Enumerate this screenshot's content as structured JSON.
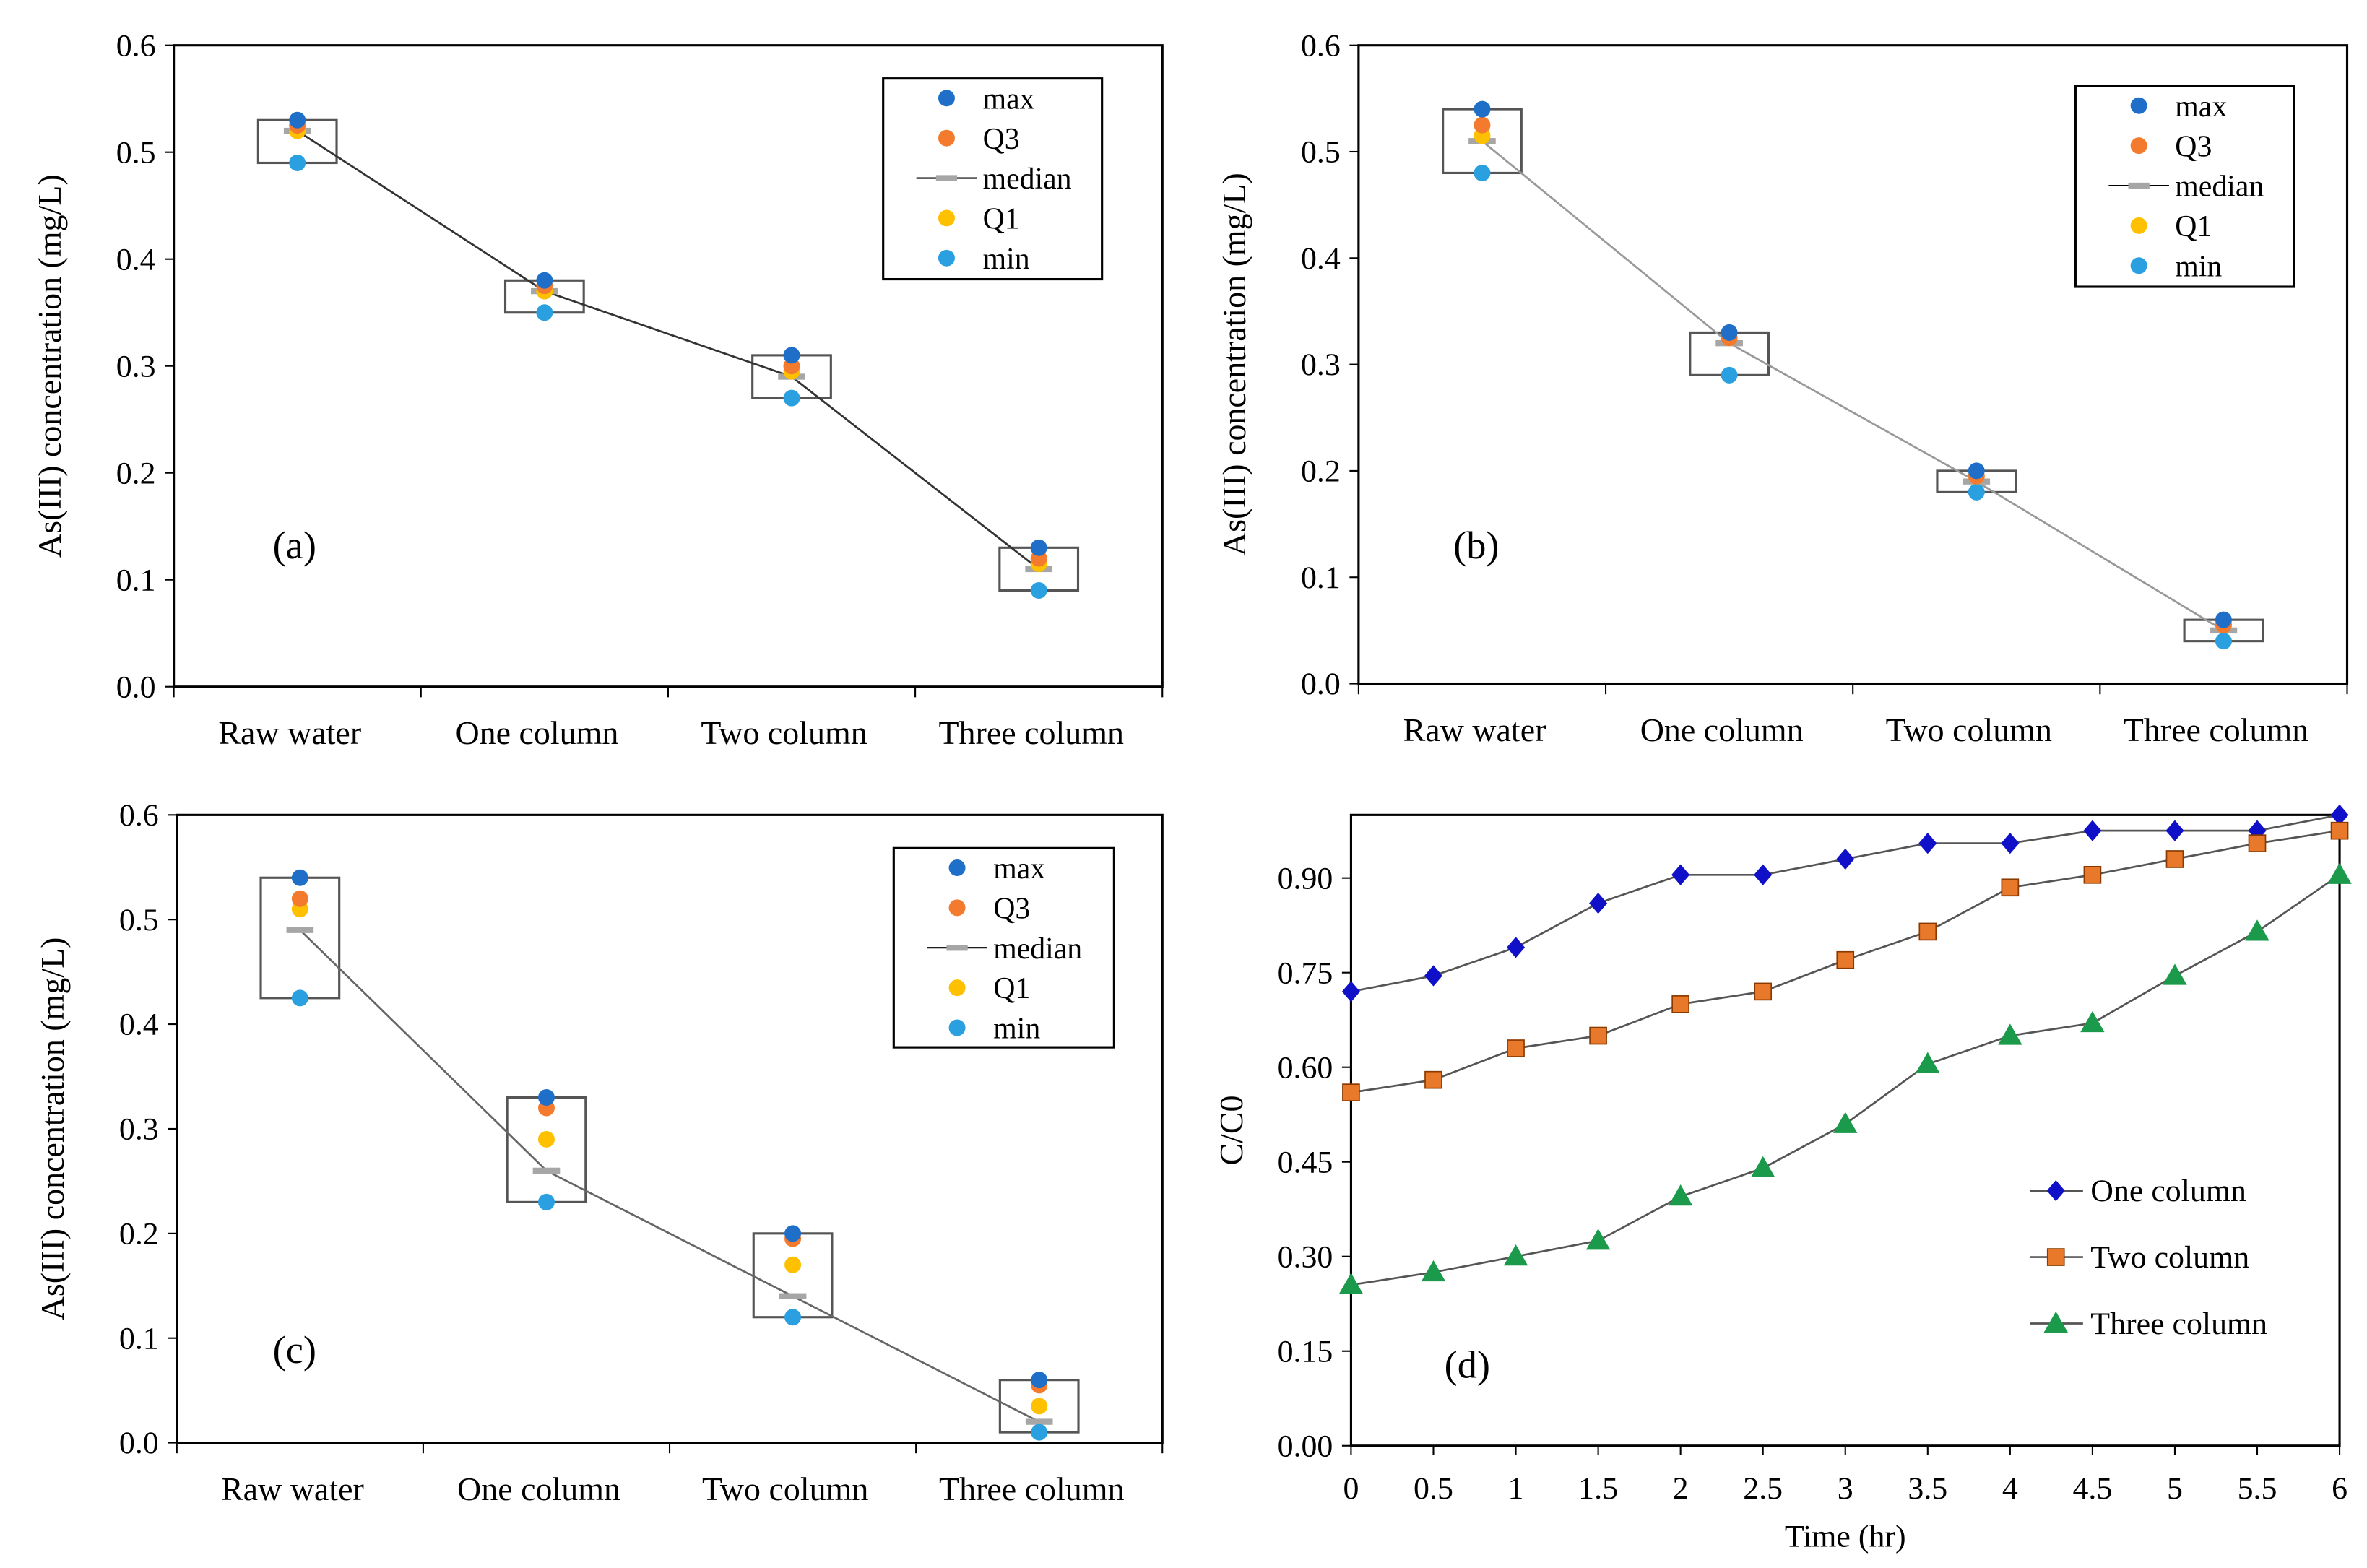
{
  "colors": {
    "max": "#1f6fc9",
    "Q3": "#f47b2e",
    "median": "#a6a6a6",
    "Q1": "#ffc000",
    "min": "#2aa0e0",
    "one": "#1010c8",
    "two": "#e8782a",
    "three": "#1a9a4a"
  },
  "chart_data": [
    {
      "type": "box",
      "panel_label": "(a)",
      "ylabel": "As(III) concentration (mg/L)",
      "ylim": [
        0,
        0.6
      ],
      "yticks": [
        "0.0",
        "0.1",
        "0.2",
        "0.3",
        "0.4",
        "0.5",
        "0.6"
      ],
      "categories": [
        "Raw water",
        "One column",
        "Two column",
        "Three column"
      ],
      "legend": [
        "max",
        "Q3",
        "median",
        "Q1",
        "min"
      ],
      "series": {
        "max": [
          0.53,
          0.38,
          0.31,
          0.13
        ],
        "Q3": [
          0.525,
          0.375,
          0.3,
          0.12
        ],
        "median": [
          0.52,
          0.37,
          0.29,
          0.11
        ],
        "Q1": [
          0.52,
          0.37,
          0.295,
          0.115
        ],
        "min": [
          0.49,
          0.35,
          0.27,
          0.09
        ]
      }
    },
    {
      "type": "box",
      "panel_label": "(b)",
      "ylabel": "As(III) concentration (mg/L)",
      "ylim": [
        0,
        0.6
      ],
      "yticks": [
        "0.0",
        "0.1",
        "0.2",
        "0.3",
        "0.4",
        "0.5",
        "0.6"
      ],
      "categories": [
        "Raw water",
        "One column",
        "Two column",
        "Three column"
      ],
      "legend": [
        "max",
        "Q3",
        "median",
        "Q1",
        "min"
      ],
      "series": {
        "max": [
          0.54,
          0.33,
          0.2,
          0.06
        ],
        "Q3": [
          0.525,
          0.325,
          0.195,
          0.055
        ],
        "median": [
          0.51,
          0.32,
          0.19,
          0.05
        ],
        "Q1": [
          0.515,
          0.325,
          0.195,
          0.055
        ],
        "min": [
          0.48,
          0.29,
          0.18,
          0.04
        ]
      }
    },
    {
      "type": "box",
      "panel_label": "(c)",
      "ylabel": "As(III) concentration (mg/L)",
      "ylim": [
        0,
        0.6
      ],
      "yticks": [
        "0.0",
        "0.1",
        "0.2",
        "0.3",
        "0.4",
        "0.5",
        "0.6"
      ],
      "categories": [
        "Raw water",
        "One column",
        "Two column",
        "Three column"
      ],
      "legend": [
        "max",
        "Q3",
        "median",
        "Q1",
        "min"
      ],
      "series": {
        "max": [
          0.54,
          0.33,
          0.2,
          0.06
        ],
        "Q3": [
          0.52,
          0.32,
          0.195,
          0.055
        ],
        "median": [
          0.49,
          0.26,
          0.14,
          0.02
        ],
        "Q1": [
          0.51,
          0.29,
          0.17,
          0.035
        ],
        "min": [
          0.425,
          0.23,
          0.12,
          0.01
        ]
      }
    },
    {
      "type": "line",
      "panel_label": "(d)",
      "xlabel": "Time (hr)",
      "ylabel": "C/C0",
      "ylim": [
        0,
        1.0
      ],
      "xlim": [
        0,
        6
      ],
      "yticks": [
        "0.00",
        "0.15",
        "0.30",
        "0.45",
        "0.60",
        "0.75",
        "0.90"
      ],
      "x": [
        0,
        0.5,
        1,
        1.5,
        2,
        2.5,
        3,
        3.5,
        4,
        4.5,
        5,
        5.5,
        6
      ],
      "xticks": [
        "0",
        "0.5",
        "1",
        "1.5",
        "2",
        "2.5",
        "3",
        "3.5",
        "4",
        "4.5",
        "5",
        "5.5",
        "6"
      ],
      "series": [
        {
          "name": "One column",
          "values": [
            0.72,
            0.745,
            0.79,
            0.86,
            0.905,
            0.905,
            0.93,
            0.955,
            0.955,
            0.975,
            0.975,
            0.975,
            1.0
          ]
        },
        {
          "name": "Two column",
          "values": [
            0.56,
            0.58,
            0.63,
            0.65,
            0.7,
            0.72,
            0.77,
            0.815,
            0.885,
            0.905,
            0.93,
            0.955,
            0.975
          ]
        },
        {
          "name": "Three column",
          "values": [
            0.255,
            0.275,
            0.3,
            0.325,
            0.395,
            0.44,
            0.51,
            0.605,
            0.65,
            0.67,
            0.745,
            0.815,
            0.905
          ]
        }
      ]
    }
  ]
}
